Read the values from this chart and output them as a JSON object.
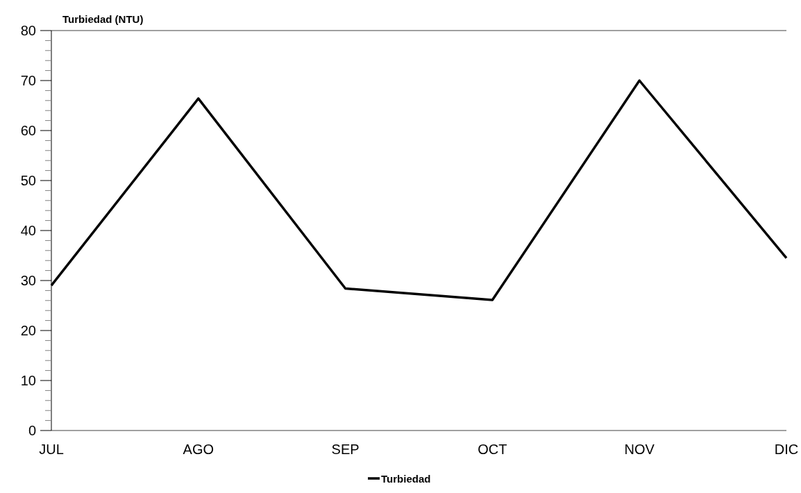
{
  "chart_data": {
    "type": "line",
    "ylabel": "Turbiedad (NTU)",
    "categories": [
      "JUL",
      "AGO",
      "SEP",
      "OCT",
      "NOV",
      "DIC"
    ],
    "series": [
      {
        "name": "Turbiedad",
        "color": "#000000",
        "values": [
          29,
          66.4,
          28.4,
          26.1,
          70,
          34.5
        ]
      }
    ],
    "ylim": [
      0,
      80
    ],
    "yticks": [
      0,
      {
        "value": 2,
        "label": null
      },
      {
        "value": 4,
        "label": null
      },
      {
        "value": 6,
        "label": null
      },
      {
        "value": 8,
        "label": null
      },
      10,
      {
        "value": 12,
        "label": null
      },
      {
        "value": 14,
        "label": null
      },
      {
        "value": 16,
        "label": null
      },
      {
        "value": 18,
        "label": null
      },
      20,
      {
        "value": 22,
        "label": null
      },
      {
        "value": 24,
        "label": null
      },
      {
        "value": 26,
        "label": null
      },
      {
        "value": 28,
        "label": null
      },
      30,
      {
        "value": 32,
        "label": null
      },
      {
        "value": 34,
        "label": null
      },
      {
        "value": 36,
        "label": null
      },
      {
        "value": 38,
        "label": null
      },
      40,
      {
        "value": 42,
        "label": null
      },
      {
        "value": 44,
        "label": null
      },
      {
        "value": 46,
        "label": null
      },
      {
        "value": 48,
        "label": null
      },
      50,
      {
        "value": 52,
        "label": null
      },
      {
        "value": 54,
        "label": null
      },
      {
        "value": 56,
        "label": null
      },
      {
        "value": 58,
        "label": null
      },
      60,
      {
        "value": 62,
        "label": null
      },
      {
        "value": 64,
        "label": null
      },
      {
        "value": 66,
        "label": null
      },
      {
        "value": 68,
        "label": null
      },
      70,
      {
        "value": 72,
        "label": null
      },
      {
        "value": 74,
        "label": null
      },
      {
        "value": 76,
        "label": null
      },
      {
        "value": 78,
        "label": null
      },
      80
    ],
    "legend": "bottom",
    "line_style": "solid",
    "marker": "none",
    "grid": false
  }
}
